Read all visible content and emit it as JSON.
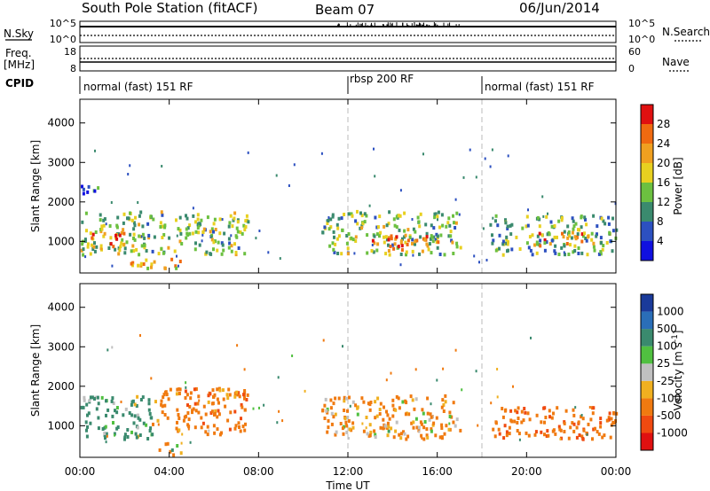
{
  "header": {
    "station": "South Pole Station (fitACF)",
    "beam": "Beam 07",
    "date": "06/Jun/2014"
  },
  "nsky_panel": {
    "left_label": "N.Sky",
    "left_ticks": [
      "10^5",
      "10^0"
    ],
    "right_label": "N.Search",
    "right_ticks": [
      "10^5",
      "10^0"
    ]
  },
  "freq_panel": {
    "left_label_line1": "Freq.",
    "left_label_line2": "[MHz]",
    "left_ticks": [
      "18",
      "8"
    ],
    "right_label": "Nave",
    "right_ticks": [
      "60",
      "0"
    ]
  },
  "cpid": {
    "label": "CPID",
    "segments": [
      {
        "name": "normal (fast) 151 RF",
        "start_hour": 0,
        "end_hour": 12
      },
      {
        "name": "rbsp 200 RF",
        "start_hour": 12,
        "end_hour": 18
      },
      {
        "name": "normal (fast) 151 RF",
        "start_hour": 18,
        "end_hour": 24
      }
    ]
  },
  "chart_data": [
    {
      "type": "heatmap",
      "name": "power",
      "ylabel": "Slant Range [km]",
      "xlabel": "Time UT",
      "xlim_hours": [
        0,
        24
      ],
      "ylim": [
        200,
        4600
      ],
      "yticks": [
        "1000",
        "2000",
        "3000",
        "4000"
      ],
      "xticks": [
        "00:00",
        "04:00",
        "08:00",
        "12:00",
        "16:00",
        "20:00",
        "00:00"
      ],
      "colorbar": {
        "label": "Power [dB]",
        "tick_labels": [
          "4",
          "8",
          "12",
          "16",
          "20",
          "24",
          "28"
        ],
        "colors": [
          "#1010e0",
          "#2c50c0",
          "#3a8a6e",
          "#6cc040",
          "#e8d020",
          "#f0a020",
          "#f06a10",
          "#e01010"
        ]
      },
      "regions": [
        {
          "t0": 0.0,
          "t1": 7.5,
          "r0": 700,
          "r1": 1800,
          "value": 14
        },
        {
          "t0": 0.3,
          "t1": 2.5,
          "r0": 900,
          "r1": 1300,
          "value": 26
        },
        {
          "t0": 2.2,
          "t1": 4.6,
          "r0": 300,
          "r1": 600,
          "value": 20
        },
        {
          "t0": 0.0,
          "t1": 1.0,
          "r0": 2200,
          "r1": 2500,
          "value": 8
        },
        {
          "t0": 10.8,
          "t1": 17.0,
          "r0": 700,
          "r1": 1800,
          "value": 14
        },
        {
          "t0": 13.0,
          "t1": 16.0,
          "r0": 800,
          "r1": 1200,
          "value": 24
        },
        {
          "t0": 18.3,
          "t1": 24.0,
          "r0": 700,
          "r1": 1700,
          "value": 12
        },
        {
          "t0": 20.3,
          "t1": 23.0,
          "r0": 900,
          "r1": 1300,
          "value": 22
        }
      ]
    },
    {
      "type": "heatmap",
      "name": "velocity",
      "ylabel": "Slant Range [km]",
      "xlabel": "Time UT",
      "xlim_hours": [
        0,
        24
      ],
      "ylim": [
        200,
        4600
      ],
      "yticks": [
        "1000",
        "2000",
        "3000",
        "4000"
      ],
      "xticks": [
        "00:00",
        "04:00",
        "08:00",
        "12:00",
        "16:00",
        "20:00",
        "00:00"
      ],
      "colorbar": {
        "label": "Velocity [m s^-1]",
        "tick_labels": [
          "1000",
          "500",
          "100",
          "25",
          "-25",
          "-100",
          "-500",
          "-1000"
        ],
        "colors": [
          "#1a3a9a",
          "#2a6eb8",
          "#3a8a6e",
          "#50c040",
          "#c0c0c0",
          "#f0b020",
          "#f07a10",
          "#f04a10",
          "#e01010"
        ]
      },
      "regions": [
        {
          "t0": 0.0,
          "t1": 3.2,
          "r0": 700,
          "r1": 1800,
          "value": 200
        },
        {
          "t0": 3.2,
          "t1": 7.5,
          "r0": 800,
          "r1": 2000,
          "value": -300
        },
        {
          "t0": 3.5,
          "t1": 4.5,
          "r0": 300,
          "r1": 600,
          "value": 0
        },
        {
          "t0": 10.8,
          "t1": 17.0,
          "r0": 700,
          "r1": 1800,
          "value": -200
        },
        {
          "t0": 18.3,
          "t1": 24.0,
          "r0": 700,
          "r1": 1500,
          "value": -400
        }
      ]
    }
  ]
}
